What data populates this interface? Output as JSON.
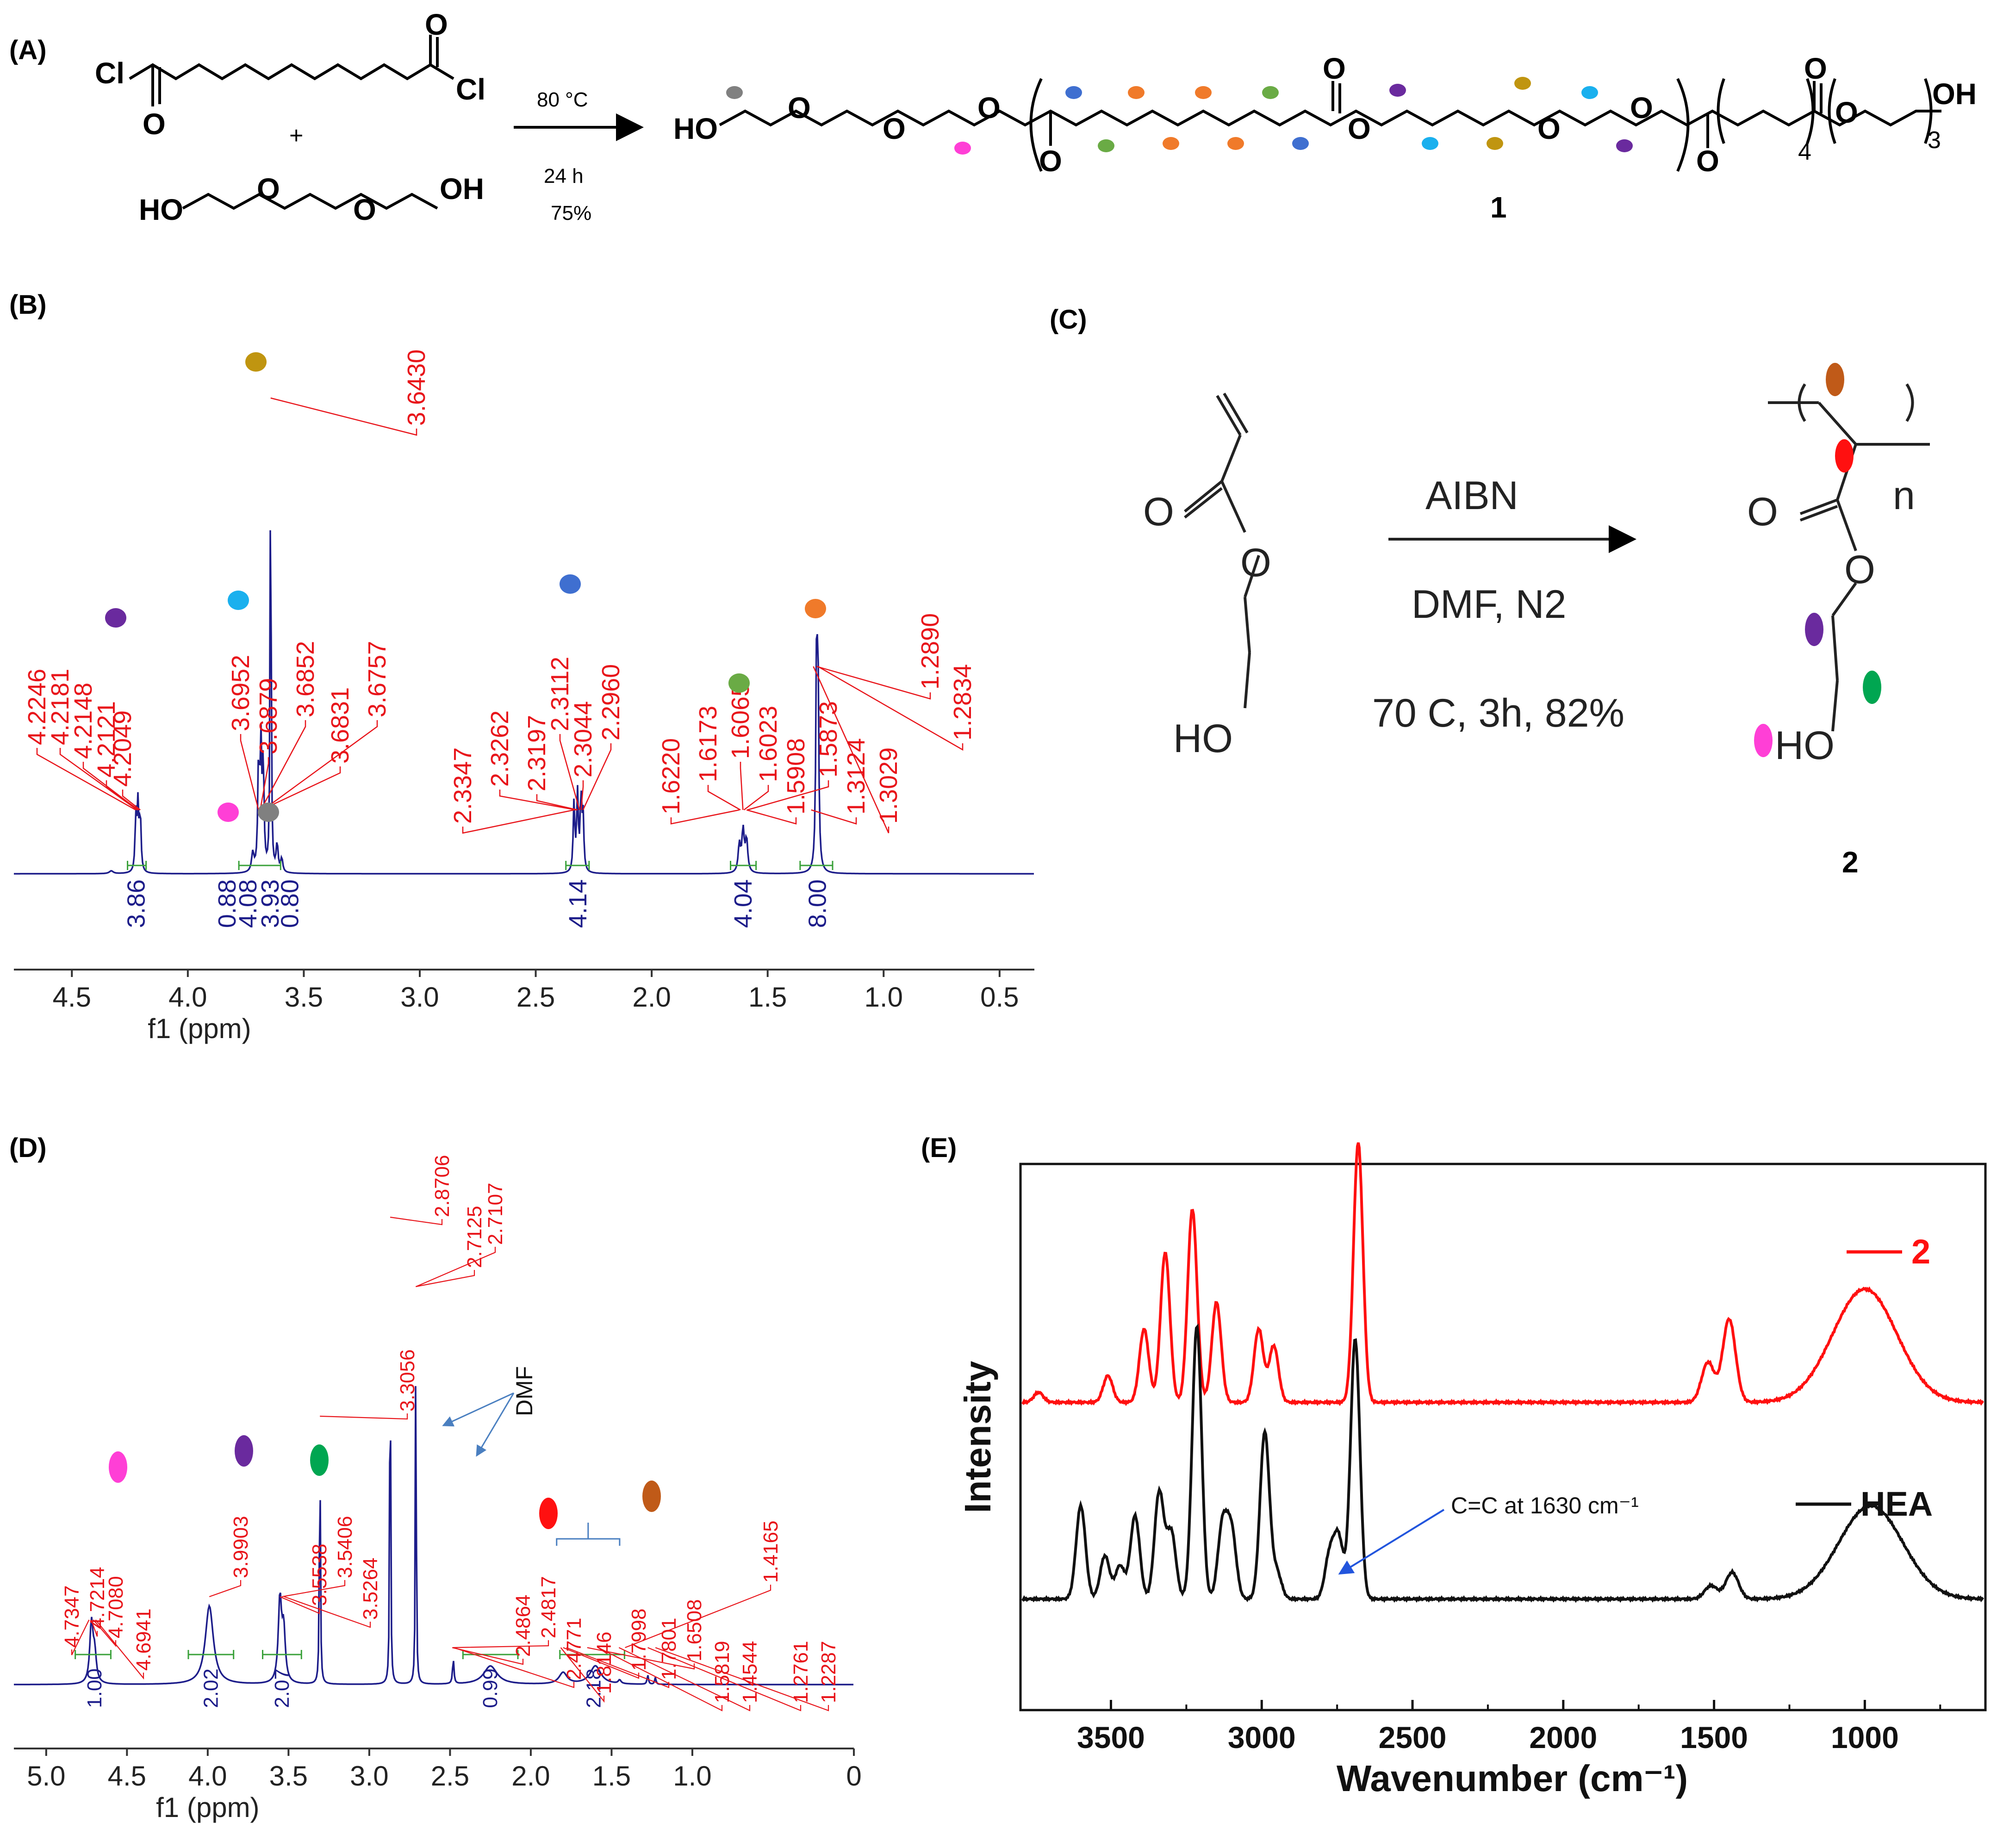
{
  "panel_labels": {
    "a": "(A)",
    "b": "(B)",
    "c": "(C)",
    "d": "(D)",
    "e": "(E)"
  },
  "scheme_a": {
    "reactant1_cl_left": "Cl",
    "reactant1_cl_right": "Cl",
    "o": "O",
    "plus": "+",
    "reactant2_ho": "HO",
    "reactant2_oh": "OH",
    "temp": "80 °C",
    "time": "24 h",
    "yield": "75%",
    "product_ho": "HO",
    "product_oh": "OH",
    "subscript_4": "4",
    "subscript_3": "3",
    "compound_number": "1"
  },
  "scheme_c": {
    "o": "O",
    "ho": "HO",
    "reagent": "AIBN",
    "solvent": "DMF, N2",
    "conditions": "70 C, 3h, 82%",
    "n": "n",
    "compound_number": "2"
  },
  "colors": {
    "grey": "#808080",
    "magenta": "#ff3fd6",
    "blue": "#3f6fd0",
    "orange": "#f07a2a",
    "green": "#6aab45",
    "purple": "#6a2a9e",
    "cyan": "#1ab0ee",
    "gold": "#c09510",
    "red": "#ff1010",
    "brown": "#c05a18",
    "green2": "#00a651",
    "spectrum": "#1d1d8a",
    "peak_label": "#e8141a",
    "integral": "#3aa13a"
  },
  "nmr_b": {
    "xlabel": "f1 (ppm)",
    "x_ticks": [
      "4.5",
      "4.0",
      "3.5",
      "3.0",
      "2.5",
      "2.0",
      "1.5",
      "1.0",
      "0.5"
    ],
    "xlim": [
      4.75,
      0.35
    ],
    "peak_labels": [
      "4.2246",
      "4.2181",
      "4.2148",
      "4.2121",
      "4.2049",
      "3.6952",
      "3.6879",
      "3.6852",
      "3.6831",
      "3.6757",
      "3.6430",
      "2.3347",
      "2.3262",
      "2.3197",
      "2.3112",
      "2.3044",
      "2.2960",
      "1.6220",
      "1.6173",
      "1.6065",
      "1.6023",
      "1.5908",
      "1.5873",
      "1.3124",
      "1.3029",
      "1.2890",
      "1.2834"
    ],
    "integrals": [
      "3.86",
      "0.88",
      "4.08",
      "3.93",
      "0.80",
      "4.14",
      "4.04",
      "8.00"
    ]
  },
  "nmr_d": {
    "xlabel": "f1 (ppm)",
    "x_ticks": [
      "5.0",
      "4.5",
      "4.0",
      "3.5",
      "3.0",
      "2.5",
      "2.0",
      "1.5",
      "1.0",
      "0"
    ],
    "xlim": [
      5.2,
      0
    ],
    "peak_labels": [
      "4.7347",
      "4.7214",
      "4.7080",
      "4.6941",
      "3.9903",
      "3.5538",
      "3.5406",
      "3.5264",
      "3.3056",
      "2.8706",
      "2.7125",
      "2.7107",
      "2.4864",
      "2.4817",
      "2.4771",
      "1.8146",
      "1.7998",
      "1.7801",
      "1.6508",
      "1.5819",
      "1.4544",
      "1.4165",
      "1.2761",
      "1.2287"
    ],
    "integrals": [
      "1.00",
      "2.02",
      "2.07",
      "0.99",
      "2.18"
    ],
    "dmf_label": "DMF"
  },
  "chart_data": {
    "type": "line",
    "title": "",
    "xlabel": "Wavenumber (cm⁻¹)",
    "ylabel": "Intensity",
    "xlim": [
      3800,
      600
    ],
    "x_ticks": [
      "3500",
      "3000",
      "2500",
      "2000",
      "1500",
      "1000"
    ],
    "legend": [
      "2",
      "HEA"
    ],
    "annotation": "C=C at 1630 cm⁻¹",
    "series": [
      {
        "name": "2",
        "color": "#ff1010",
        "peaks": [
          [
            3740,
            0.03
          ],
          [
            3510,
            0.08
          ],
          [
            3390,
            0.22
          ],
          [
            3320,
            0.45
          ],
          [
            3230,
            0.58
          ],
          [
            3150,
            0.3
          ],
          [
            3010,
            0.22
          ],
          [
            2960,
            0.17
          ],
          [
            2680,
            0.78
          ],
          [
            1520,
            0.12
          ],
          [
            1450,
            0.25
          ],
          [
            1000,
            0.34
          ]
        ]
      },
      {
        "name": "HEA",
        "color": "#111111",
        "peaks": [
          [
            3600,
            0.28
          ],
          [
            3520,
            0.13
          ],
          [
            3470,
            0.1
          ],
          [
            3420,
            0.25
          ],
          [
            3340,
            0.32
          ],
          [
            3300,
            0.2
          ],
          [
            3215,
            0.82
          ],
          [
            3130,
            0.22
          ],
          [
            3100,
            0.2
          ],
          [
            2990,
            0.5
          ],
          [
            2950,
            0.08
          ],
          [
            2775,
            0.13
          ],
          [
            2745,
            0.18
          ],
          [
            2690,
            0.78
          ],
          [
            1510,
            0.04
          ],
          [
            1440,
            0.08
          ],
          [
            980,
            0.28
          ]
        ]
      }
    ]
  }
}
